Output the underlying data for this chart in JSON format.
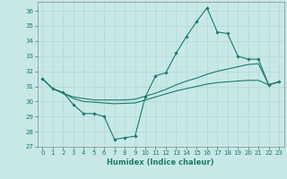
{
  "xlabel": "Humidex (Indice chaleur)",
  "bg_color": "#c8e8e8",
  "grid_color": "#b0d8d0",
  "line_color": "#1a7a6e",
  "xlim": [
    -0.5,
    23.5
  ],
  "ylim": [
    27,
    36.6
  ],
  "yticks": [
    27,
    28,
    29,
    30,
    31,
    32,
    33,
    34,
    35,
    36
  ],
  "xticks": [
    0,
    1,
    2,
    3,
    4,
    5,
    6,
    7,
    8,
    9,
    10,
    11,
    12,
    13,
    14,
    15,
    16,
    17,
    18,
    19,
    20,
    21,
    22,
    23
  ],
  "line1_x": [
    0,
    1,
    2,
    3,
    4,
    5,
    6,
    7,
    8,
    9,
    10,
    11,
    12,
    13,
    14,
    15,
    16,
    17,
    18,
    19,
    20,
    21,
    22,
    23
  ],
  "line1_y": [
    31.5,
    30.85,
    30.6,
    29.8,
    29.2,
    29.2,
    29.0,
    27.5,
    27.6,
    27.7,
    30.3,
    31.7,
    31.9,
    33.2,
    34.3,
    35.3,
    36.2,
    34.6,
    34.5,
    33.0,
    32.8,
    32.8,
    31.1,
    31.3
  ],
  "line2_x": [
    0,
    1,
    2,
    3,
    4,
    5,
    6,
    7,
    8,
    9,
    10,
    11,
    12,
    13,
    14,
    15,
    16,
    17,
    18,
    19,
    20,
    21,
    22,
    23
  ],
  "line2_y": [
    31.5,
    30.85,
    30.55,
    30.3,
    30.2,
    30.1,
    30.1,
    30.1,
    30.1,
    30.15,
    30.35,
    30.55,
    30.8,
    31.1,
    31.35,
    31.55,
    31.8,
    32.0,
    32.15,
    32.3,
    32.45,
    32.5,
    31.1,
    31.3
  ],
  "line3_x": [
    0,
    1,
    2,
    3,
    4,
    5,
    6,
    7,
    8,
    9,
    10,
    11,
    12,
    13,
    14,
    15,
    16,
    17,
    18,
    19,
    20,
    21,
    22,
    23
  ],
  "line3_y": [
    31.5,
    30.85,
    30.55,
    30.2,
    30.0,
    29.95,
    29.9,
    29.85,
    29.88,
    29.9,
    30.1,
    30.3,
    30.5,
    30.7,
    30.85,
    31.0,
    31.15,
    31.25,
    31.3,
    31.35,
    31.4,
    31.4,
    31.1,
    31.3
  ]
}
